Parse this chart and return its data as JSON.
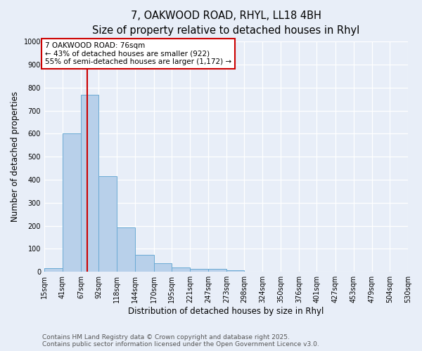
{
  "title_line1": "7, OAKWOOD ROAD, RHYL, LL18 4BH",
  "title_line2": "Size of property relative to detached houses in Rhyl",
  "xlabel": "Distribution of detached houses by size in Rhyl",
  "ylabel": "Number of detached properties",
  "bin_edges": [
    15,
    41,
    67,
    92,
    118,
    144,
    170,
    195,
    221,
    247,
    273,
    298,
    324,
    350,
    376,
    401,
    427,
    453,
    479,
    504,
    530
  ],
  "bar_heights": [
    15,
    600,
    770,
    415,
    193,
    75,
    38,
    20,
    13,
    13,
    8,
    0,
    0,
    0,
    0,
    0,
    0,
    0,
    0,
    0
  ],
  "bar_color": "#b8d0ea",
  "bar_edge_color": "#6aaad4",
  "vline_x": 76,
  "vline_color": "#cc0000",
  "annotation_text": "7 OAKWOOD ROAD: 76sqm\n← 43% of detached houses are smaller (922)\n55% of semi-detached houses are larger (1,172) →",
  "annotation_box_color": "#ffffff",
  "annotation_box_edge": "#cc0000",
  "ylim": [
    0,
    1000
  ],
  "yticks": [
    0,
    100,
    200,
    300,
    400,
    500,
    600,
    700,
    800,
    900,
    1000
  ],
  "background_color": "#e8eef8",
  "grid_color": "#ffffff",
  "footer_line1": "Contains HM Land Registry data © Crown copyright and database right 2025.",
  "footer_line2": "Contains public sector information licensed under the Open Government Licence v3.0.",
  "title_fontsize": 10.5,
  "subtitle_fontsize": 9.5,
  "tick_fontsize": 7,
  "label_fontsize": 8.5,
  "annotation_fontsize": 7.5,
  "footer_fontsize": 6.5
}
